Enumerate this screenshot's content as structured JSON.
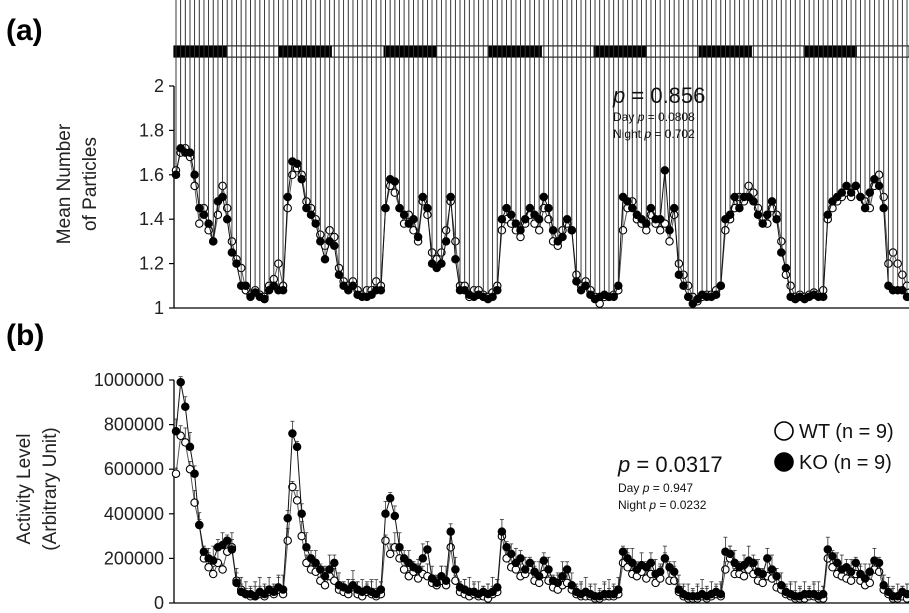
{
  "chart_data": [
    {
      "type": "line",
      "panel": "(a)",
      "ylabel_lines": [
        "Mean Number",
        "of Particles"
      ],
      "ylim": [
        1,
        2
      ],
      "yticks": [
        "1",
        "1.2",
        "1.4",
        "1.6",
        "1.8",
        "2"
      ],
      "ytick_values": [
        1,
        1.2,
        1.4,
        1.6,
        1.8,
        2
      ],
      "light_dark_bar": [
        "dark",
        "light",
        "dark",
        "light",
        "dark",
        "light",
        "dark",
        "light",
        "dark",
        "light",
        "dark",
        "light",
        "dark",
        "light"
      ],
      "stats": {
        "main_prefix": "p",
        "main_value": "= 0.856",
        "day_label": "Day",
        "day_value": "= 0.0808",
        "night_label": "Night",
        "night_value": "= 0.702"
      },
      "series": [
        {
          "name": "WT",
          "values": [
            1.62,
            1.7,
            1.72,
            1.68,
            1.55,
            1.38,
            1.45,
            1.35,
            1.3,
            1.42,
            1.55,
            1.45,
            1.3,
            1.22,
            1.18,
            1.08,
            1.06,
            1.08,
            1.06,
            1.05,
            1.1,
            1.13,
            1.2,
            1.1,
            1.45,
            1.6,
            1.63,
            1.6,
            1.48,
            1.45,
            1.4,
            1.33,
            1.28,
            1.35,
            1.32,
            1.18,
            1.12,
            1.1,
            1.12,
            1.08,
            1.06,
            1.08,
            1.08,
            1.12,
            1.1,
            1.45,
            1.55,
            1.52,
            1.45,
            1.38,
            1.42,
            1.35,
            1.3,
            1.48,
            1.42,
            1.25,
            1.22,
            1.25,
            1.35,
            1.48,
            1.3,
            1.1,
            1.1,
            1.05,
            1.08,
            1.08,
            1.06,
            1.05,
            1.07,
            1.1,
            1.35,
            1.4,
            1.38,
            1.35,
            1.32,
            1.38,
            1.42,
            1.38,
            1.35,
            1.45,
            1.4,
            1.3,
            1.28,
            1.35,
            1.38,
            1.35,
            1.15,
            1.1,
            1.12,
            1.08,
            1.05,
            1.02,
            1.05,
            1.05,
            1.06,
            1.08,
            1.35,
            1.45,
            1.48,
            1.4,
            1.38,
            1.35,
            1.42,
            1.38,
            1.35,
            1.38,
            1.3,
            1.42,
            1.2,
            1.15,
            1.1,
            1.05,
            1.03,
            1.05,
            1.06,
            1.06,
            1.08,
            1.1,
            1.35,
            1.4,
            1.45,
            1.5,
            1.48,
            1.55,
            1.52,
            1.45,
            1.4,
            1.38,
            1.45,
            1.42,
            1.3,
            1.15,
            1.1,
            1.05,
            1.06,
            1.05,
            1.06,
            1.07,
            1.06,
            1.08,
            1.4,
            1.45,
            1.48,
            1.5,
            1.52,
            1.5,
            1.55,
            1.5,
            1.48,
            1.45,
            1.55,
            1.6,
            1.5,
            1.2,
            1.25,
            1.2,
            1.15,
            1.1
          ]
        },
        {
          "name": "KO",
          "values": [
            1.6,
            1.72,
            1.7,
            1.7,
            1.6,
            1.45,
            1.42,
            1.38,
            1.3,
            1.48,
            1.5,
            1.4,
            1.25,
            1.2,
            1.1,
            1.1,
            1.05,
            1.07,
            1.05,
            1.04,
            1.08,
            1.1,
            1.08,
            1.08,
            1.5,
            1.66,
            1.65,
            1.58,
            1.45,
            1.42,
            1.38,
            1.3,
            1.22,
            1.3,
            1.28,
            1.15,
            1.1,
            1.08,
            1.1,
            1.06,
            1.05,
            1.05,
            1.06,
            1.08,
            1.08,
            1.45,
            1.58,
            1.57,
            1.45,
            1.42,
            1.38,
            1.4,
            1.32,
            1.5,
            1.45,
            1.2,
            1.18,
            1.2,
            1.3,
            1.5,
            1.22,
            1.08,
            1.08,
            1.06,
            1.05,
            1.06,
            1.05,
            1.04,
            1.05,
            1.08,
            1.4,
            1.45,
            1.42,
            1.38,
            1.35,
            1.4,
            1.45,
            1.42,
            1.4,
            1.5,
            1.45,
            1.35,
            1.3,
            1.32,
            1.4,
            1.35,
            1.12,
            1.08,
            1.1,
            1.06,
            1.04,
            1.05,
            1.06,
            1.05,
            1.05,
            1.1,
            1.5,
            1.48,
            1.45,
            1.42,
            1.4,
            1.38,
            1.45,
            1.4,
            1.4,
            1.62,
            1.35,
            1.45,
            1.15,
            1.1,
            1.05,
            1.02,
            1.04,
            1.06,
            1.05,
            1.05,
            1.06,
            1.1,
            1.4,
            1.42,
            1.5,
            1.45,
            1.5,
            1.5,
            1.48,
            1.42,
            1.38,
            1.42,
            1.48,
            1.4,
            1.25,
            1.18,
            1.05,
            1.04,
            1.05,
            1.04,
            1.05,
            1.06,
            1.05,
            1.05,
            1.42,
            1.48,
            1.5,
            1.52,
            1.55,
            1.52,
            1.55,
            1.5,
            1.45,
            1.52,
            1.58,
            1.55,
            1.45,
            1.1,
            1.08,
            1.08,
            1.08,
            1.05
          ]
        }
      ]
    },
    {
      "type": "line",
      "panel": "(b)",
      "ylabel_lines": [
        "Activity Level",
        "(Arbitrary Unit)"
      ],
      "ylim": [
        0,
        1000000
      ],
      "yticks": [
        "0",
        "200000",
        "400000",
        "600000",
        "800000",
        "1000000"
      ],
      "ytick_values": [
        0,
        200000,
        400000,
        600000,
        800000,
        1000000
      ],
      "stats": {
        "main_prefix": "p",
        "main_value": "= 0.0317",
        "day_label": "Day",
        "day_value": "= 0.947",
        "night_label": "Night",
        "night_value": "= 0.0232"
      },
      "legend": {
        "position": "top-right",
        "entries": [
          {
            "marker": "open-circle",
            "label": "WT (n = 9)"
          },
          {
            "marker": "filled-circle",
            "label": "KO (n = 9)"
          }
        ]
      },
      "series": [
        {
          "name": "WT",
          "values": [
            580000,
            750000,
            720000,
            600000,
            450000,
            350000,
            200000,
            160000,
            130000,
            180000,
            150000,
            230000,
            250000,
            100000,
            60000,
            40000,
            30000,
            30000,
            40000,
            30000,
            50000,
            40000,
            60000,
            40000,
            280000,
            520000,
            460000,
            300000,
            180000,
            150000,
            140000,
            100000,
            80000,
            120000,
            100000,
            60000,
            50000,
            40000,
            70000,
            40000,
            30000,
            50000,
            40000,
            30000,
            40000,
            280000,
            220000,
            250000,
            200000,
            150000,
            120000,
            140000,
            110000,
            130000,
            120000,
            90000,
            80000,
            100000,
            80000,
            250000,
            100000,
            50000,
            40000,
            30000,
            40000,
            30000,
            30000,
            20000,
            40000,
            50000,
            300000,
            200000,
            160000,
            150000,
            120000,
            130000,
            150000,
            100000,
            90000,
            130000,
            100000,
            70000,
            60000,
            80000,
            90000,
            60000,
            40000,
            30000,
            30000,
            30000,
            20000,
            20000,
            30000,
            30000,
            30000,
            40000,
            180000,
            160000,
            130000,
            120000,
            140000,
            110000,
            130000,
            90000,
            110000,
            200000,
            100000,
            100000,
            50000,
            30000,
            20000,
            20000,
            20000,
            30000,
            20000,
            30000,
            40000,
            30000,
            150000,
            200000,
            130000,
            130000,
            120000,
            150000,
            130000,
            100000,
            90000,
            120000,
            110000,
            70000,
            60000,
            40000,
            30000,
            20000,
            20000,
            20000,
            30000,
            30000,
            20000,
            20000,
            200000,
            160000,
            130000,
            120000,
            110000,
            100000,
            130000,
            100000,
            80000,
            90000,
            150000,
            140000,
            60000,
            40000,
            20000,
            20000,
            30000,
            20000
          ]
        },
        {
          "name": "KO",
          "values": [
            770000,
            990000,
            880000,
            700000,
            580000,
            350000,
            230000,
            200000,
            190000,
            250000,
            260000,
            280000,
            240000,
            90000,
            50000,
            40000,
            40000,
            30000,
            50000,
            40000,
            60000,
            50000,
            70000,
            60000,
            380000,
            760000,
            700000,
            400000,
            250000,
            200000,
            180000,
            150000,
            120000,
            150000,
            180000,
            80000,
            70000,
            60000,
            80000,
            60000,
            50000,
            60000,
            50000,
            40000,
            60000,
            400000,
            470000,
            390000,
            250000,
            200000,
            180000,
            160000,
            150000,
            200000,
            240000,
            110000,
            90000,
            120000,
            100000,
            320000,
            150000,
            70000,
            60000,
            50000,
            50000,
            40000,
            50000,
            40000,
            50000,
            70000,
            320000,
            250000,
            220000,
            180000,
            200000,
            150000,
            180000,
            140000,
            120000,
            190000,
            150000,
            100000,
            90000,
            120000,
            150000,
            80000,
            50000,
            40000,
            50000,
            40000,
            30000,
            30000,
            40000,
            40000,
            40000,
            60000,
            230000,
            200000,
            180000,
            150000,
            170000,
            160000,
            180000,
            130000,
            140000,
            200000,
            160000,
            140000,
            60000,
            40000,
            30000,
            30000,
            30000,
            40000,
            30000,
            40000,
            50000,
            40000,
            230000,
            220000,
            180000,
            160000,
            170000,
            190000,
            180000,
            140000,
            130000,
            200000,
            150000,
            120000,
            80000,
            50000,
            40000,
            30000,
            30000,
            40000,
            40000,
            40000,
            30000,
            40000,
            240000,
            210000,
            180000,
            150000,
            160000,
            140000,
            180000,
            130000,
            110000,
            140000,
            190000,
            180000,
            80000,
            50000,
            30000,
            30000,
            50000,
            40000
          ]
        }
      ]
    }
  ]
}
